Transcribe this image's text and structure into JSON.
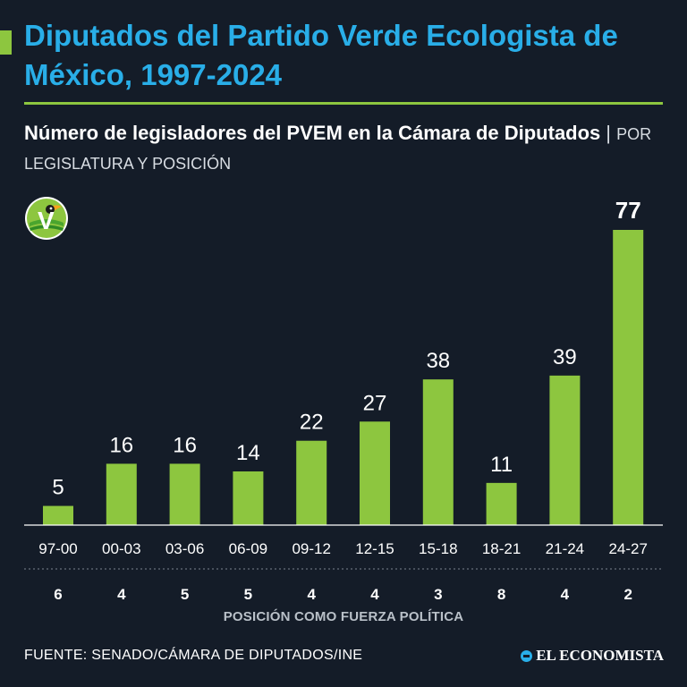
{
  "title": "Diputados del Partido Verde Ecologista de México, 1997-2024",
  "subtitle": {
    "main": "Número de legisladores del PVEM en la Cámara de Diputados",
    "separator": "|",
    "qualifier": "POR LEGISLATURA Y POSICIÓN"
  },
  "logo": {
    "name": "pvem-toucan-logo",
    "letter": "V"
  },
  "position_label": "POSICIÓN COMO FUERZA POLÍTICA",
  "source": "FUENTE: SENADO/CÁMARA DE DIPUTADOS/INE",
  "brand": "EL ECONOMISTA",
  "colors": {
    "background": "#141c28",
    "title": "#29aee8",
    "bar": "#8dc63f",
    "text": "#ffffff"
  },
  "chart_data": {
    "type": "bar",
    "title": "Número de legisladores del PVEM en la Cámara de Diputados",
    "xlabel": "",
    "ylabel": "",
    "categories": [
      "97-00",
      "00-03",
      "03-06",
      "06-09",
      "09-12",
      "12-15",
      "15-18",
      "18-21",
      "21-24",
      "24-27"
    ],
    "values": [
      5,
      16,
      16,
      14,
      22,
      27,
      38,
      11,
      39,
      77
    ],
    "positions": [
      6,
      4,
      5,
      5,
      4,
      4,
      3,
      8,
      4,
      2
    ],
    "ylim": [
      0,
      77
    ],
    "grid": false
  }
}
